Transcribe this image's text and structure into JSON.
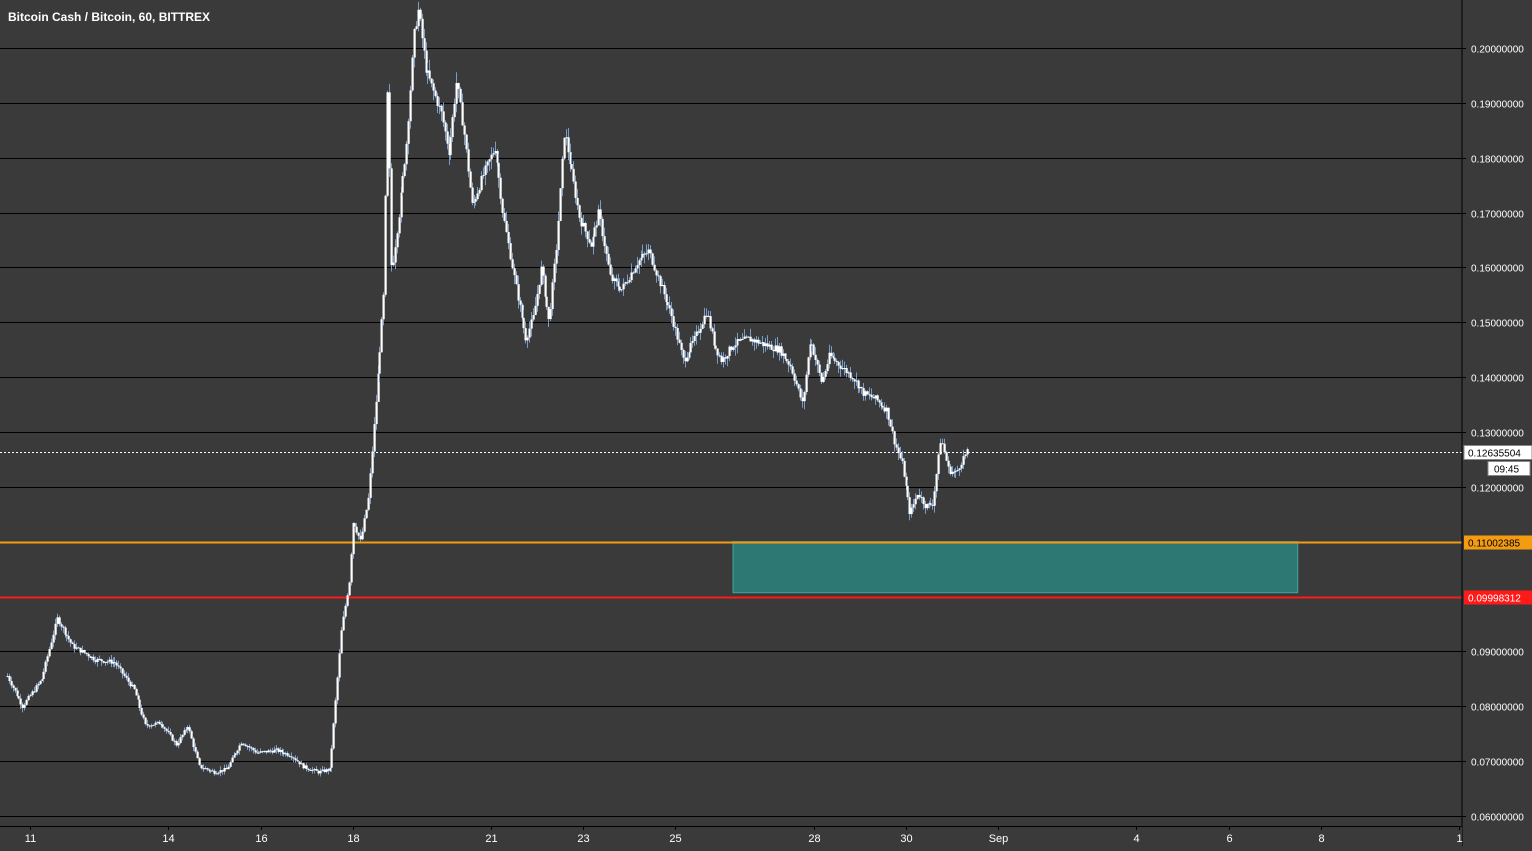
{
  "header": {
    "symbol": "Bitcoin Cash / Bitcoin, 60, BITTREX"
  },
  "colors": {
    "background": "#3a3a3a",
    "gridline": "#000000",
    "candle_up": "#ffffff",
    "candle_down": "#ffffff",
    "wick": "#7a9cc6",
    "resistance_line": "#f39c12",
    "support_line": "#ff1a1a",
    "zone_fill": "#2e7873",
    "zone_border": "#3fa69f",
    "current_price_line": "#ffffff"
  },
  "chart_data": {
    "type": "candlestick",
    "title": "Bitcoin Cash / Bitcoin, 60, BITTREX",
    "xlabel": "",
    "ylabel": "",
    "x_ticks": [
      "11",
      "14",
      "16",
      "18",
      "21",
      "23",
      "25",
      "28",
      "30",
      "Sep",
      "4",
      "6",
      "8",
      "1"
    ],
    "y_ticks": [
      "0.20000000",
      "0.19000000",
      "0.18000000",
      "0.17000000",
      "0.16000000",
      "0.15000000",
      "0.14000000",
      "0.13000000",
      "0.12000000",
      "0.09000000",
      "0.08000000",
      "0.07000000",
      "0.06000000"
    ],
    "ylim": [
      0.0592,
      0.2088
    ],
    "grid": true,
    "price_path": [
      [
        "Aug 10 12:00",
        0.0855
      ],
      [
        "Aug 10 20:00",
        0.08
      ],
      [
        "Aug 11 06:00",
        0.085
      ],
      [
        "Aug 11 14:00",
        0.096
      ],
      [
        "Aug 11 22:00",
        0.091
      ],
      [
        "Aug 12 10:00",
        0.0885
      ],
      [
        "Aug 12 20:00",
        0.088
      ],
      [
        "Aug 13 06:00",
        0.083
      ],
      [
        "Aug 13 12:00",
        0.0765
      ],
      [
        "Aug 13 20:00",
        0.077
      ],
      [
        "Aug 14 04:00",
        0.073
      ],
      [
        "Aug 14 10:00",
        0.0765
      ],
      [
        "Aug 14 16:00",
        0.069
      ],
      [
        "Aug 15 00:00",
        0.068
      ],
      [
        "Aug 15 06:00",
        0.0685
      ],
      [
        "Aug 15 14:00",
        0.0735
      ],
      [
        "Aug 15 22:00",
        0.0715
      ],
      [
        "Aug 16 08:00",
        0.072
      ],
      [
        "Aug 16 16:00",
        0.071
      ],
      [
        "Aug 16 22:00",
        0.069
      ],
      [
        "Aug 17 06:00",
        0.068
      ],
      [
        "Aug 17 12:00",
        0.0685
      ],
      [
        "Aug 17 14:00",
        0.077
      ],
      [
        "Aug 17 18:00",
        0.094
      ],
      [
        "Aug 17 22:00",
        0.103
      ],
      [
        "Aug 18 00:00",
        0.114
      ],
      [
        "Aug 18 04:00",
        0.11
      ],
      [
        "Aug 18 08:00",
        0.118
      ],
      [
        "Aug 18 12:00",
        0.136
      ],
      [
        "Aug 18 16:00",
        0.155
      ],
      [
        "Aug 18 18:00",
        0.193
      ],
      [
        "Aug 18 20:00",
        0.159
      ],
      [
        "Aug 19 00:00",
        0.17
      ],
      [
        "Aug 19 04:00",
        0.183
      ],
      [
        "Aug 19 08:00",
        0.203
      ],
      [
        "Aug 19 10:00",
        0.207
      ],
      [
        "Aug 19 14:00",
        0.196
      ],
      [
        "Aug 19 18:00",
        0.192
      ],
      [
        "Aug 19 22:00",
        0.188
      ],
      [
        "Aug 20 02:00",
        0.181
      ],
      [
        "Aug 20 06:00",
        0.194
      ],
      [
        "Aug 20 10:00",
        0.184
      ],
      [
        "Aug 20 14:00",
        0.171
      ],
      [
        "Aug 20 20:00",
        0.177
      ],
      [
        "Aug 21 02:00",
        0.182
      ],
      [
        "Aug 21 06:00",
        0.17
      ],
      [
        "Aug 21 12:00",
        0.158
      ],
      [
        "Aug 21 18:00",
        0.147
      ],
      [
        "Aug 21 22:00",
        0.151
      ],
      [
        "Aug 22 02:00",
        0.16
      ],
      [
        "Aug 22 06:00",
        0.15
      ],
      [
        "Aug 22 10:00",
        0.164
      ],
      [
        "Aug 22 14:00",
        0.185
      ],
      [
        "Aug 22 18:00",
        0.177
      ],
      [
        "Aug 22 22:00",
        0.169
      ],
      [
        "Aug 23 04:00",
        0.164
      ],
      [
        "Aug 23 08:00",
        0.17
      ],
      [
        "Aug 23 14:00",
        0.158
      ],
      [
        "Aug 23 20:00",
        0.156
      ],
      [
        "Aug 24 04:00",
        0.161
      ],
      [
        "Aug 24 10:00",
        0.163
      ],
      [
        "Aug 24 16:00",
        0.157
      ],
      [
        "Aug 24 22:00",
        0.151
      ],
      [
        "Aug 25 04:00",
        0.143
      ],
      [
        "Aug 25 10:00",
        0.147
      ],
      [
        "Aug 25 16:00",
        0.152
      ],
      [
        "Aug 25 20:00",
        0.146
      ],
      [
        "Aug 26 00:00",
        0.143
      ],
      [
        "Aug 26 06:00",
        0.146
      ],
      [
        "Aug 26 14:00",
        0.147
      ],
      [
        "Aug 26 22:00",
        0.146
      ],
      [
        "Aug 27 06:00",
        0.145
      ],
      [
        "Aug 27 12:00",
        0.142
      ],
      [
        "Aug 27 18:00",
        0.135
      ],
      [
        "Aug 27 22:00",
        0.147
      ],
      [
        "Aug 28 04:00",
        0.139
      ],
      [
        "Aug 28 08:00",
        0.144
      ],
      [
        "Aug 28 14:00",
        0.142
      ],
      [
        "Aug 28 20:00",
        0.14
      ],
      [
        "Aug 29 02:00",
        0.137
      ],
      [
        "Aug 29 08:00",
        0.136
      ],
      [
        "Aug 29 14:00",
        0.134
      ],
      [
        "Aug 29 18:00",
        0.128
      ],
      [
        "Aug 29 22:00",
        0.124
      ],
      [
        "Aug 30 02:00",
        0.115
      ],
      [
        "Aug 30 06:00",
        0.119
      ],
      [
        "Aug 30 10:00",
        0.1165
      ],
      [
        "Aug 30 14:00",
        0.117
      ],
      [
        "Aug 30 18:00",
        0.129
      ],
      [
        "Aug 30 22:00",
        0.123
      ],
      [
        "Aug 31 02:00",
        0.1225
      ],
      [
        "Aug 31 06:00",
        0.1255
      ],
      [
        "Aug 31 08:00",
        0.12635504
      ]
    ],
    "horizontal_lines": [
      {
        "price": 0.11002385,
        "label": "0.11002385",
        "role": "resistance"
      },
      {
        "price": 0.09998312,
        "label": "0.09998312",
        "role": "support"
      },
      {
        "price": 0.12635504,
        "label": "0.12635504",
        "role": "last-price",
        "countdown": "09:45"
      }
    ],
    "zone": {
      "from_time": "Aug 26 06:00",
      "to_time": "Sep 7 12:00",
      "price_top": 0.11,
      "price_bottom": 0.1007
    }
  }
}
